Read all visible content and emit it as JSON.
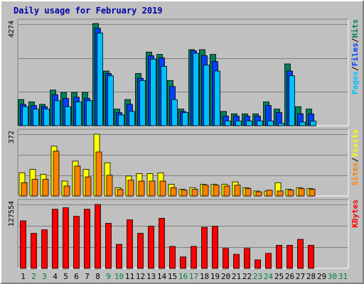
{
  "title": "Daily usage for February 2019",
  "colors": {
    "title": "#0000aa",
    "hits": "#00805c",
    "files": "#0040ff",
    "pages": "#00c0ff",
    "visits": "#ffff00",
    "sites": "#ff8000",
    "kbytes": "#ff0000",
    "day_weekday": "#000000",
    "day_weekend": "#008040"
  },
  "chart_data": {
    "type": "bar",
    "days": [
      "1",
      "2",
      "3",
      "4",
      "5",
      "6",
      "7",
      "8",
      "9",
      "10",
      "11",
      "12",
      "13",
      "14",
      "15",
      "16",
      "17",
      "18",
      "19",
      "20",
      "21",
      "22",
      "23",
      "24",
      "25",
      "26",
      "27",
      "28",
      "29",
      "30",
      "31"
    ],
    "weekend_days": [
      "2",
      "3",
      "9",
      "10",
      "16",
      "17",
      "23",
      "24",
      "30",
      "31"
    ],
    "panels": [
      {
        "id": "hits-files-pages",
        "max_label": "4274",
        "ylim": [
          0,
          4274
        ],
        "grid": true,
        "legend": [
          {
            "text": "Pages",
            "color": "pages"
          },
          {
            "text": "/",
            "color": "sep"
          },
          {
            "text": "Files",
            "color": "files"
          },
          {
            "text": "/",
            "color": "sep"
          },
          {
            "text": "Hits",
            "color": "hits"
          }
        ],
        "series": [
          {
            "name": "Hits",
            "color": "hits",
            "values": [
              1100,
              1000,
              900,
              1500,
              1400,
              1400,
              1400,
              4300,
              2300,
              700,
              1100,
              2200,
              3100,
              3000,
              1900,
              700,
              3200,
              3200,
              3000,
              600,
              500,
              500,
              500,
              1000,
              700,
              2600,
              800,
              700,
              0,
              0,
              0
            ]
          },
          {
            "name": "Files",
            "color": "files",
            "values": [
              900,
              850,
              800,
              1300,
              1150,
              1200,
              1150,
              4100,
              2200,
              550,
              900,
              2000,
              2950,
              2850,
              1650,
              600,
              3150,
              2950,
              2700,
              400,
              400,
              400,
              400,
              850,
              550,
              2300,
              500,
              500,
              0,
              0,
              0
            ]
          },
          {
            "name": "Pages",
            "color": "pages",
            "values": [
              800,
              700,
              700,
              1050,
              800,
              1000,
              1050,
              3900,
              2100,
              450,
              600,
              1900,
              2800,
              2500,
              1100,
              550,
              3050,
              2550,
              2300,
              200,
              200,
              200,
              200,
              200,
              100,
              2100,
              150,
              200,
              0,
              0,
              0
            ]
          }
        ]
      },
      {
        "id": "visits-sites",
        "max_label": "372",
        "ylim": [
          0,
          372
        ],
        "grid": true,
        "legend": [
          {
            "text": "Sites",
            "color": "sites"
          },
          {
            "text": "/",
            "color": "sep"
          },
          {
            "text": "Visits",
            "color": "visits"
          }
        ],
        "series": [
          {
            "name": "Visits",
            "color": "visits",
            "values": [
              140,
              160,
              130,
              300,
              90,
              210,
              160,
              372,
              200,
              50,
              120,
              135,
              135,
              140,
              70,
              40,
              50,
              70,
              70,
              70,
              85,
              50,
              30,
              30,
              80,
              40,
              50,
              45,
              0,
              0,
              0
            ]
          },
          {
            "name": "Sites",
            "color": "sites",
            "values": [
              80,
              100,
              100,
              270,
              60,
              180,
              115,
              265,
              125,
              40,
              95,
              90,
              90,
              90,
              50,
              35,
              40,
              65,
              65,
              60,
              65,
              45,
              25,
              35,
              30,
              35,
              45,
              40,
              0,
              0,
              0
            ]
          }
        ]
      },
      {
        "id": "kbytes",
        "max_label": "127554",
        "ylim": [
          0,
          127554
        ],
        "grid": true,
        "legend": [
          {
            "text": "KBytes",
            "color": "kbytes"
          }
        ],
        "series": [
          {
            "name": "KBytes",
            "color": "kbytes",
            "values": [
              95000,
              70000,
              77000,
              118000,
              121000,
              104000,
              118000,
              127554,
              90000,
              48000,
              97000,
              70000,
              84000,
              100000,
              44000,
              23000,
              44000,
              82000,
              84000,
              40000,
              28000,
              40000,
              17000,
              30000,
              46000,
              46000,
              58000,
              46000,
              0,
              0,
              0
            ]
          }
        ]
      }
    ]
  }
}
